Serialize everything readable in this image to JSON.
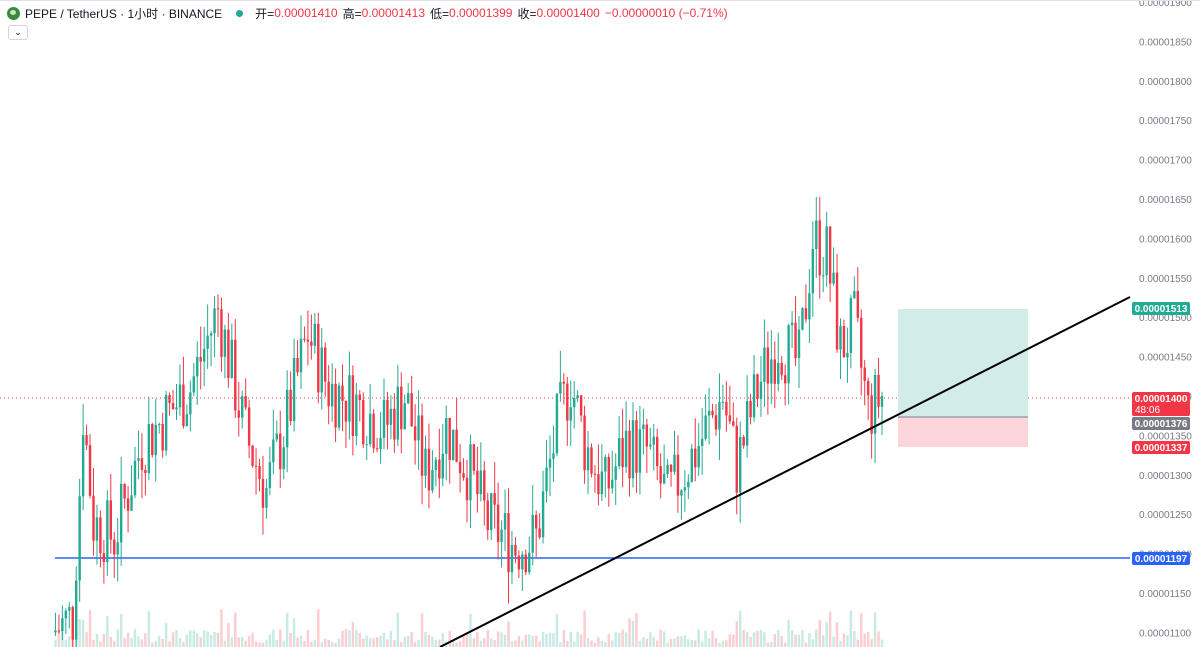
{
  "header": {
    "symbol": "PEPE / TetherUS · 1小时 · BINANCE",
    "open_label": "开=",
    "open_value": "0.00001410",
    "high_label": "高=",
    "high_value": "0.00001413",
    "low_label": "低=",
    "low_value": "0.00001399",
    "close_label": "收=",
    "close_value": "0.00001400",
    "change": "−0.00000010 (−0.71%)",
    "collapse_glyph": "⌄"
  },
  "price_axis": {
    "labels": [
      "0.00001900",
      "0.00001850",
      "0.00001800",
      "0.00001750",
      "0.00001700",
      "0.00001650",
      "0.00001600",
      "0.00001550",
      "0.00001500",
      "0.00001450",
      "0.00001400",
      "0.00001350",
      "0.00001300",
      "0.00001250",
      "0.00001200",
      "0.00001150",
      "0.00001100"
    ]
  },
  "tags": {
    "take_profit": "0.00001513",
    "last_price": "0.00001400",
    "countdown": "48:06",
    "entry": "0.00001376",
    "stop_loss": "0.00001337",
    "support": "0.00001197"
  },
  "colors": {
    "up": "#22ab94",
    "down": "#f23645",
    "support_line": "#2962ff",
    "trendline": "#000000",
    "profit_zone": "#d2ede9",
    "loss_zone": "#fbd5d9",
    "support_tag": "#2962ff",
    "entry_tag": "#787b86"
  },
  "chart_data": {
    "type": "candlestick",
    "symbol": "PEPE / TetherUS",
    "interval": "1小时",
    "exchange": "BINANCE",
    "ylim": [
      1.09e-05,
      1.91e-05
    ],
    "last": {
      "open": 1.41e-05,
      "high": 1.413e-05,
      "low": 1.399e-05,
      "close": 1.4e-05
    },
    "path_points": [
      [
        0,
        1.1e-05
      ],
      [
        6,
        1.12e-05
      ],
      [
        8,
        1.28e-05
      ],
      [
        9,
        1.38e-05
      ],
      [
        12,
        1.24e-05
      ],
      [
        18,
        1.22e-05
      ],
      [
        26,
        1.34e-05
      ],
      [
        40,
        1.41e-05
      ],
      [
        48,
        1.51e-05
      ],
      [
        52,
        1.43e-05
      ],
      [
        56,
        1.35e-05
      ],
      [
        62,
        1.28e-05
      ],
      [
        68,
        1.37e-05
      ],
      [
        74,
        1.48e-05
      ],
      [
        80,
        1.41e-05
      ],
      [
        88,
        1.39e-05
      ],
      [
        96,
        1.36e-05
      ],
      [
        102,
        1.4e-05
      ],
      [
        108,
        1.3e-05
      ],
      [
        114,
        1.36e-05
      ],
      [
        120,
        1.31e-05
      ],
      [
        126,
        1.24e-05
      ],
      [
        134,
        1.21e-05
      ],
      [
        140,
        1.22e-05
      ],
      [
        146,
        1.36e-05
      ],
      [
        150,
        1.42e-05
      ],
      [
        154,
        1.34e-05
      ],
      [
        160,
        1.28e-05
      ],
      [
        166,
        1.34e-05
      ],
      [
        172,
        1.33e-05
      ],
      [
        178,
        1.27e-05
      ],
      [
        186,
        1.33e-05
      ],
      [
        194,
        1.4e-05
      ],
      [
        198,
        1.31e-05
      ],
      [
        204,
        1.41e-05
      ],
      [
        210,
        1.47e-05
      ],
      [
        216,
        1.44e-05
      ],
      [
        220,
        1.6e-05
      ],
      [
        224,
        1.58e-05
      ],
      [
        228,
        1.46e-05
      ],
      [
        232,
        1.49e-05
      ],
      [
        236,
        1.38e-05
      ],
      [
        240,
        1.4e-05
      ]
    ],
    "trendline": [
      [
        1.09e-05,
        1.52e-05
      ]
    ],
    "support_level": 1.197e-05,
    "position": {
      "take_profit": 1.513e-05,
      "entry": 1.376e-05,
      "stop_loss": 1.337e-05
    }
  }
}
